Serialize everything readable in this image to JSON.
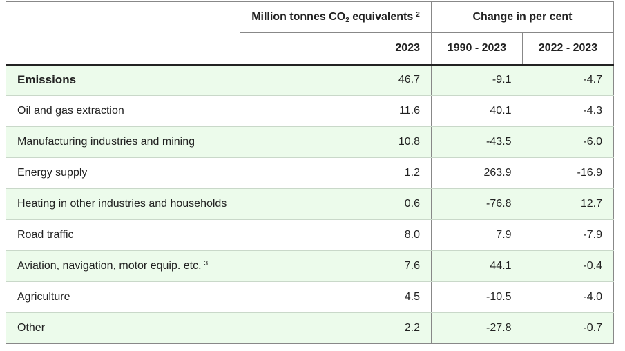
{
  "header": {
    "col_value_pre": "Million tonnes CO",
    "col_value_sub": "2",
    "col_value_post": " equivalents",
    "col_value_note": "2",
    "col_change": "Change in per cent",
    "sub_year": "2023",
    "sub_change_1": "1990 - 2023",
    "sub_change_2": "2022 - 2023"
  },
  "rows": [
    {
      "label": "Emissions",
      "note": "",
      "value": "46.7",
      "change_1990": "-9.1",
      "change_2022": "-4.7"
    },
    {
      "label": "Oil and gas extraction",
      "note": "",
      "value": "11.6",
      "change_1990": "40.1",
      "change_2022": "-4.3"
    },
    {
      "label": "Manufacturing industries and mining",
      "note": "",
      "value": "10.8",
      "change_1990": "-43.5",
      "change_2022": "-6.0"
    },
    {
      "label": "Energy supply",
      "note": "",
      "value": "1.2",
      "change_1990": "263.9",
      "change_2022": "-16.9"
    },
    {
      "label": "Heating in other industries and households",
      "note": "",
      "value": "0.6",
      "change_1990": "-76.8",
      "change_2022": "12.7"
    },
    {
      "label": "Road traffic",
      "note": "",
      "value": "8.0",
      "change_1990": "7.9",
      "change_2022": "-7.9"
    },
    {
      "label": "Aviation, navigation, motor equip. etc.",
      "note": "3",
      "value": "7.6",
      "change_1990": "44.1",
      "change_2022": "-0.4"
    },
    {
      "label": "Agriculture",
      "note": "",
      "value": "4.5",
      "change_1990": "-10.5",
      "change_2022": "-4.0"
    },
    {
      "label": "Other",
      "note": "",
      "value": "2.2",
      "change_1990": "-27.8",
      "change_2022": "-0.7"
    }
  ]
}
